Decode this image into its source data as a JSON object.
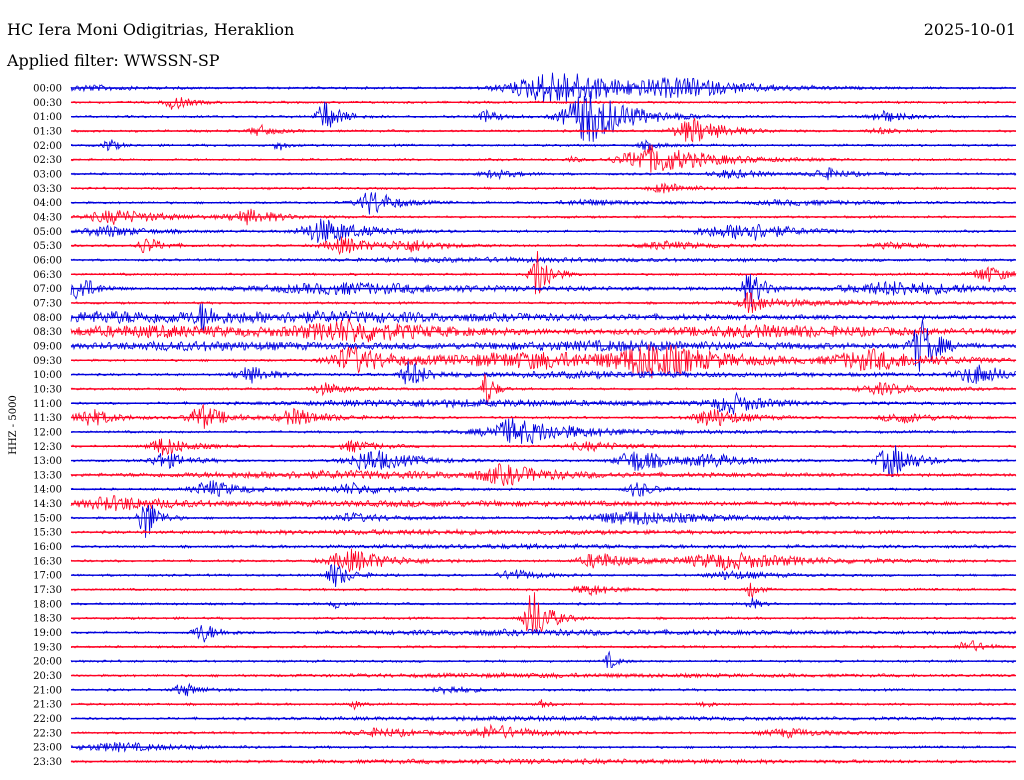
{
  "header": {
    "station": "HC Iera Moni Odigitrias, Heraklion",
    "filter_label": "Applied filter: WWSSN-SP",
    "date": "2025-10-01"
  },
  "colors": {
    "even": "#0000dd",
    "odd": "#ff0022"
  },
  "chart_data": {
    "type": "line",
    "title": "HC Iera Moni Odigitrias, Heraklion",
    "ylabel": "HHZ - 5000",
    "traces": [
      {
        "label": "00:00",
        "events": [
          [
            0.02,
            0.05,
            0.1
          ],
          [
            0.52,
            0.1,
            0.6
          ],
          [
            0.65,
            0.08,
            0.25
          ]
        ]
      },
      {
        "label": "00:30",
        "events": [
          [
            0.11,
            0.02,
            0.25
          ]
        ]
      },
      {
        "label": "01:00",
        "events": [
          [
            0.27,
            0.02,
            0.55
          ],
          [
            0.44,
            0.02,
            0.2
          ],
          [
            0.55,
            0.05,
            1.0
          ],
          [
            0.86,
            0.03,
            0.2
          ]
        ]
      },
      {
        "label": "01:30",
        "events": [
          [
            0.2,
            0.02,
            0.2
          ],
          [
            0.66,
            0.04,
            0.45
          ],
          [
            0.86,
            0.03,
            0.1
          ]
        ]
      },
      {
        "label": "02:00",
        "events": [
          [
            0.04,
            0.01,
            0.3
          ],
          [
            0.22,
            0.01,
            0.2
          ],
          [
            0.61,
            0.02,
            0.15
          ]
        ]
      },
      {
        "label": "02:30",
        "events": [
          [
            0.53,
            0.01,
            0.1
          ],
          [
            0.62,
            0.07,
            0.5
          ]
        ]
      },
      {
        "label": "03:00",
        "events": [
          [
            0.45,
            0.03,
            0.15
          ],
          [
            0.7,
            0.04,
            0.15
          ],
          [
            0.8,
            0.03,
            0.2
          ]
        ]
      },
      {
        "label": "03:30",
        "events": [
          [
            0.63,
            0.03,
            0.2
          ]
        ]
      },
      {
        "label": "04:00",
        "events": [
          [
            0.32,
            0.03,
            0.45
          ],
          [
            0.55,
            0.06,
            0.1
          ],
          [
            0.77,
            0.1,
            0.08
          ]
        ]
      },
      {
        "label": "04:30",
        "events": [
          [
            0.05,
            0.06,
            0.25
          ],
          [
            0.19,
            0.04,
            0.25
          ]
        ]
      },
      {
        "label": "05:00",
        "events": [
          [
            0.04,
            0.05,
            0.2
          ],
          [
            0.27,
            0.05,
            0.45
          ],
          [
            0.68,
            0.05,
            0.15
          ],
          [
            0.72,
            0.05,
            0.3
          ]
        ]
      },
      {
        "label": "05:30",
        "events": [
          [
            0.08,
            0.02,
            0.3
          ],
          [
            0.29,
            0.04,
            0.3
          ],
          [
            0.36,
            0.04,
            0.2
          ],
          [
            0.63,
            0.05,
            0.15
          ],
          [
            0.87,
            0.04,
            0.1
          ]
        ]
      },
      {
        "label": "06:00",
        "events": [
          [
            0.45,
            0.3,
            0.06
          ]
        ]
      },
      {
        "label": "06:30",
        "events": [
          [
            0.495,
            0.015,
            1.0
          ],
          [
            0.97,
            0.03,
            0.3
          ]
        ]
      },
      {
        "label": "07:00",
        "events": [
          [
            0.01,
            0.02,
            0.5
          ],
          [
            0.3,
            0.2,
            0.2
          ],
          [
            0.72,
            0.02,
            0.6
          ],
          [
            0.88,
            0.12,
            0.25
          ]
        ]
      },
      {
        "label": "07:30",
        "events": [
          [
            0.72,
            0.02,
            0.35
          ],
          [
            0.78,
            0.15,
            0.08
          ]
        ]
      },
      {
        "label": "08:00",
        "events": [
          [
            0.14,
            0.01,
            0.45
          ],
          [
            0.05,
            0.2,
            0.15
          ],
          [
            0.3,
            0.5,
            0.15
          ]
        ]
      },
      {
        "label": "08:30",
        "events": [
          [
            0.3,
            0.1,
            0.35
          ],
          [
            0.1,
            0.3,
            0.2
          ],
          [
            0.75,
            0.25,
            0.2
          ]
        ]
      },
      {
        "label": "09:00",
        "events": [
          [
            0.9,
            0.02,
            1.0
          ],
          [
            0.15,
            0.3,
            0.15
          ],
          [
            0.6,
            0.3,
            0.15
          ]
        ]
      },
      {
        "label": "09:30",
        "events": [
          [
            0.3,
            0.05,
            0.5
          ],
          [
            0.5,
            0.2,
            0.3
          ],
          [
            0.62,
            0.07,
            0.55
          ],
          [
            0.85,
            0.08,
            0.35
          ]
        ]
      },
      {
        "label": "10:00",
        "events": [
          [
            0.19,
            0.03,
            0.3
          ],
          [
            0.36,
            0.02,
            0.5
          ],
          [
            0.96,
            0.04,
            0.35
          ],
          [
            0.55,
            0.3,
            0.1
          ]
        ]
      },
      {
        "label": "10:30",
        "events": [
          [
            0.44,
            0.01,
            0.7
          ],
          [
            0.27,
            0.03,
            0.2
          ],
          [
            0.86,
            0.05,
            0.2
          ]
        ]
      },
      {
        "label": "11:00",
        "events": [
          [
            0.7,
            0.04,
            0.35
          ],
          [
            0.4,
            0.3,
            0.12
          ]
        ]
      },
      {
        "label": "11:30",
        "events": [
          [
            0.02,
            0.03,
            0.35
          ],
          [
            0.14,
            0.03,
            0.45
          ],
          [
            0.24,
            0.04,
            0.3
          ],
          [
            0.68,
            0.04,
            0.35
          ],
          [
            0.88,
            0.04,
            0.2
          ]
        ]
      },
      {
        "label": "12:00",
        "events": [
          [
            0.47,
            0.05,
            0.35
          ],
          [
            0.5,
            0.15,
            0.15
          ]
        ]
      },
      {
        "label": "12:30",
        "events": [
          [
            0.1,
            0.03,
            0.35
          ],
          [
            0.3,
            0.03,
            0.2
          ],
          [
            0.55,
            0.05,
            0.15
          ]
        ]
      },
      {
        "label": "13:00",
        "events": [
          [
            0.1,
            0.03,
            0.3
          ],
          [
            0.32,
            0.05,
            0.4
          ],
          [
            0.6,
            0.04,
            0.4
          ],
          [
            0.68,
            0.05,
            0.2
          ],
          [
            0.87,
            0.03,
            0.6
          ]
        ]
      },
      {
        "label": "13:30",
        "events": [
          [
            0.46,
            0.05,
            0.3
          ],
          [
            0.3,
            0.4,
            0.12
          ]
        ]
      },
      {
        "label": "14:00",
        "events": [
          [
            0.15,
            0.04,
            0.3
          ],
          [
            0.3,
            0.05,
            0.2
          ],
          [
            0.6,
            0.02,
            0.3
          ]
        ]
      },
      {
        "label": "14:30",
        "events": [
          [
            0.05,
            0.08,
            0.25
          ],
          [
            0.4,
            0.5,
            0.08
          ]
        ]
      },
      {
        "label": "15:00",
        "events": [
          [
            0.08,
            0.015,
            0.85
          ],
          [
            0.6,
            0.1,
            0.25
          ],
          [
            0.3,
            0.05,
            0.15
          ]
        ]
      },
      {
        "label": "15:30",
        "events": [
          [
            0.4,
            0.5,
            0.06
          ]
        ]
      },
      {
        "label": "16:00",
        "events": [
          [
            0.5,
            0.45,
            0.05
          ]
        ]
      },
      {
        "label": "16:30",
        "events": [
          [
            0.3,
            0.05,
            0.4
          ],
          [
            0.56,
            0.04,
            0.3
          ],
          [
            0.7,
            0.1,
            0.3
          ]
        ]
      },
      {
        "label": "17:00",
        "events": [
          [
            0.28,
            0.02,
            0.45
          ],
          [
            0.47,
            0.03,
            0.2
          ],
          [
            0.7,
            0.05,
            0.15
          ]
        ]
      },
      {
        "label": "17:30",
        "events": [
          [
            0.55,
            0.03,
            0.2
          ],
          [
            0.72,
            0.01,
            0.3
          ]
        ]
      },
      {
        "label": "18:00",
        "events": [
          [
            0.28,
            0.01,
            0.15
          ],
          [
            0.72,
            0.01,
            0.25
          ]
        ]
      },
      {
        "label": "18:30",
        "events": [
          [
            0.49,
            0.02,
            1.0
          ]
        ]
      },
      {
        "label": "19:00",
        "events": [
          [
            0.14,
            0.02,
            0.35
          ],
          [
            0.5,
            0.4,
            0.08
          ]
        ]
      },
      {
        "label": "19:30",
        "events": [
          [
            0.95,
            0.02,
            0.25
          ]
        ]
      },
      {
        "label": "20:00",
        "events": [
          [
            0.57,
            0.01,
            0.3
          ]
        ]
      },
      {
        "label": "20:30",
        "events": [
          [
            0.5,
            0.45,
            0.05
          ]
        ]
      },
      {
        "label": "21:00",
        "events": [
          [
            0.12,
            0.02,
            0.25
          ],
          [
            0.4,
            0.03,
            0.15
          ]
        ]
      },
      {
        "label": "21:30",
        "events": [
          [
            0.3,
            0.01,
            0.15
          ],
          [
            0.5,
            0.01,
            0.15
          ],
          [
            0.67,
            0.01,
            0.15
          ]
        ]
      },
      {
        "label": "22:00",
        "events": [
          [
            0.5,
            0.45,
            0.05
          ]
        ]
      },
      {
        "label": "22:30",
        "events": [
          [
            0.45,
            0.05,
            0.25
          ],
          [
            0.33,
            0.06,
            0.15
          ],
          [
            0.76,
            0.05,
            0.15
          ]
        ]
      },
      {
        "label": "23:00",
        "events": [
          [
            0.05,
            0.08,
            0.15
          ]
        ]
      },
      {
        "label": "23:30",
        "events": [
          [
            0.5,
            0.45,
            0.06
          ]
        ]
      }
    ]
  }
}
